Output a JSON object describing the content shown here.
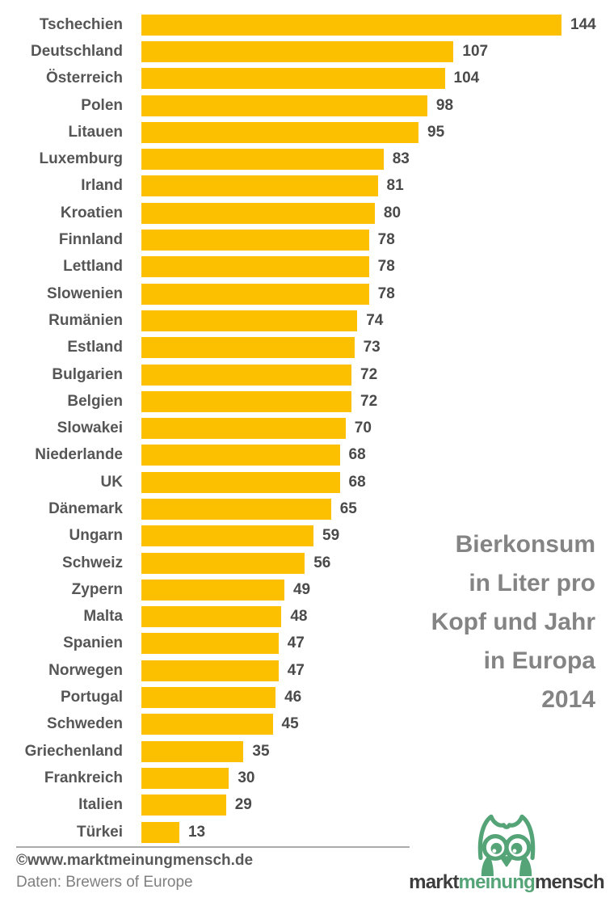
{
  "chart_data": {
    "type": "bar",
    "orientation": "horizontal",
    "title": "Bierkonsum in Liter pro Kopf und Jahr in Europa 2014",
    "categories": [
      "Tschechien",
      "Deutschland",
      "Österreich",
      "Polen",
      "Litauen",
      "Luxemburg",
      "Irland",
      "Kroatien",
      "Finnland",
      "Lettland",
      "Slowenien",
      "Rumänien",
      "Estland",
      "Bulgarien",
      "Belgien",
      "Slowakei",
      "Niederlande",
      "UK",
      "Dänemark",
      "Ungarn",
      "Schweiz",
      "Zypern",
      "Malta",
      "Spanien",
      "Norwegen",
      "Portugal",
      "Schweden",
      "Griechenland",
      "Frankreich",
      "Italien",
      "Türkei"
    ],
    "values": [
      144,
      107,
      104,
      98,
      95,
      83,
      81,
      80,
      78,
      78,
      78,
      74,
      73,
      72,
      72,
      70,
      68,
      68,
      65,
      59,
      56,
      49,
      48,
      47,
      47,
      46,
      45,
      35,
      30,
      29,
      13
    ],
    "xlim": [
      0,
      144
    ],
    "value_labels": true,
    "grid": false,
    "legend": false,
    "bar_color": "#fdc000"
  },
  "title": {
    "lines": [
      "Bierkonsum",
      "in Liter pro",
      "Kopf und Jahr",
      "in Europa",
      "2014"
    ]
  },
  "footer": {
    "copyright": "©www.marktmeinungmensch.de",
    "source": "Daten: Brewers of Europe"
  },
  "logo": {
    "part1": "markt",
    "part2": "meinung",
    "part3": "mensch"
  },
  "colors": {
    "bar": "#fdc000",
    "category_label": "#565656",
    "value_label": "#4a4a4a",
    "title_text": "#848484",
    "divider": "#ababab",
    "logo_green": "#55a478",
    "logo_dark": "#3d3d3d"
  }
}
